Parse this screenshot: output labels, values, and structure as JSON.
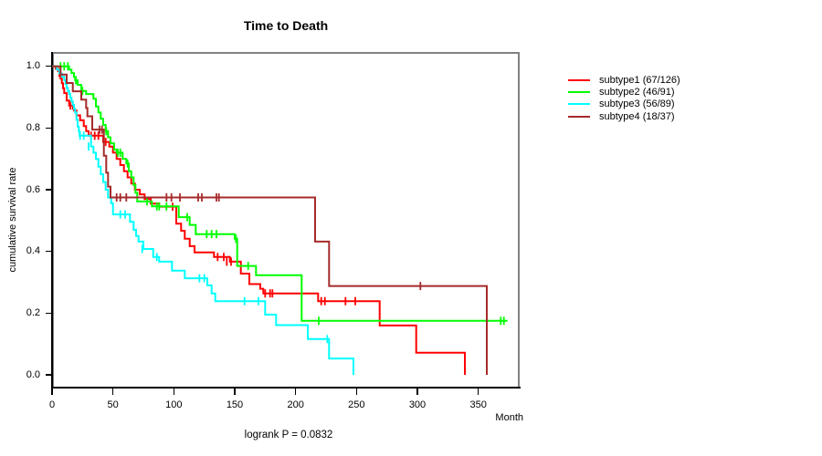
{
  "title": "Time to Death",
  "x_axis": {
    "label": "Month",
    "ticks": [
      0,
      50,
      100,
      150,
      200,
      250,
      300,
      350
    ]
  },
  "y_axis": {
    "label": "cumulative survival rate",
    "ticks": [
      1.0,
      0.8,
      0.6,
      0.4,
      0.2,
      0.0
    ]
  },
  "footnote": "logrank P = 0.0832",
  "chart_data": {
    "type": "line",
    "subtype": "kaplan-meier-step",
    "title": "Time to Death",
    "xlabel": "Month",
    "ylabel": "cumulative survival rate",
    "annotation": "logrank P = 0.0832",
    "xlim": [
      0,
      384
    ],
    "ylim": [
      -0.0443,
      1.0464
    ],
    "grid": false,
    "legend_position": "right-outside",
    "box_color": "#828282",
    "series": [
      {
        "id": "subtype1",
        "name": "subtype1 (67/126)",
        "events": 67,
        "n": 126,
        "color": "#ff0000",
        "steps": [
          [
            0,
            1.0
          ],
          [
            3,
            0.992
          ],
          [
            5,
            0.984
          ],
          [
            6,
            0.968
          ],
          [
            7,
            0.96
          ],
          [
            8,
            0.945
          ],
          [
            9,
            0.929
          ],
          [
            10,
            0.913
          ],
          [
            12,
            0.889
          ],
          [
            14,
            0.873
          ],
          [
            18,
            0.857
          ],
          [
            20,
            0.841
          ],
          [
            23,
            0.825
          ],
          [
            26,
            0.806
          ],
          [
            28,
            0.79
          ],
          [
            30,
            0.775
          ],
          [
            42,
            0.755
          ],
          [
            47,
            0.74
          ],
          [
            50,
            0.72
          ],
          [
            53,
            0.7
          ],
          [
            56,
            0.68
          ],
          [
            59,
            0.66
          ],
          [
            62,
            0.64
          ],
          [
            65,
            0.62
          ],
          [
            68,
            0.6
          ],
          [
            72,
            0.585
          ],
          [
            76,
            0.57
          ],
          [
            81,
            0.555
          ],
          [
            88,
            0.545
          ],
          [
            102,
            0.49
          ],
          [
            106,
            0.467
          ],
          [
            109,
            0.441
          ],
          [
            113,
            0.417
          ],
          [
            117,
            0.397
          ],
          [
            133,
            0.382
          ],
          [
            146,
            0.367
          ],
          [
            155,
            0.328
          ],
          [
            162,
            0.294
          ],
          [
            171,
            0.279
          ],
          [
            173.5,
            0.264
          ],
          [
            218.5,
            0.239
          ],
          [
            269,
            0.16
          ],
          [
            299,
            0.072
          ],
          [
            339,
            0
          ]
        ],
        "censors": [
          [
            15,
            0.873
          ],
          [
            17,
            0.873
          ],
          [
            32,
            0.775
          ],
          [
            35,
            0.775
          ],
          [
            38,
            0.775
          ],
          [
            44,
            0.755
          ],
          [
            99,
            0.545
          ],
          [
            136,
            0.382
          ],
          [
            141,
            0.382
          ],
          [
            143.5,
            0.367
          ],
          [
            147,
            0.367
          ],
          [
            175,
            0.264
          ],
          [
            179,
            0.264
          ],
          [
            181,
            0.264
          ],
          [
            221,
            0.239
          ],
          [
            224,
            0.239
          ],
          [
            241,
            0.239
          ],
          [
            249,
            0.239
          ]
        ]
      },
      {
        "id": "subtype2",
        "name": "subtype2 (46/91)",
        "events": 46,
        "n": 91,
        "color": "#00ff00",
        "steps": [
          [
            0,
            1.0
          ],
          [
            14,
            0.989
          ],
          [
            16,
            0.978
          ],
          [
            18,
            0.966
          ],
          [
            19,
            0.955
          ],
          [
            21,
            0.94
          ],
          [
            24,
            0.92
          ],
          [
            28,
            0.91
          ],
          [
            34,
            0.895
          ],
          [
            36,
            0.87
          ],
          [
            38,
            0.85
          ],
          [
            40,
            0.83
          ],
          [
            42,
            0.81
          ],
          [
            44,
            0.79
          ],
          [
            46,
            0.77
          ],
          [
            48,
            0.75
          ],
          [
            51,
            0.73
          ],
          [
            53,
            0.72
          ],
          [
            58,
            0.7
          ],
          [
            61,
            0.685
          ],
          [
            63,
            0.66
          ],
          [
            65,
            0.64
          ],
          [
            67,
            0.615
          ],
          [
            68.5,
            0.59
          ],
          [
            70,
            0.562
          ],
          [
            82,
            0.546
          ],
          [
            104,
            0.511
          ],
          [
            113,
            0.486
          ],
          [
            118,
            0.456
          ],
          [
            150,
            0.441
          ],
          [
            152,
            0.353
          ],
          [
            167.5,
            0.323
          ],
          [
            205,
            0.175
          ],
          [
            374,
            0.175
          ]
        ],
        "censors": [
          [
            7,
            1.0
          ],
          [
            10,
            1.0
          ],
          [
            13,
            1.0
          ],
          [
            19.5,
            0.955
          ],
          [
            25,
            0.92
          ],
          [
            44.5,
            0.79
          ],
          [
            54,
            0.72
          ],
          [
            56,
            0.72
          ],
          [
            62,
            0.685
          ],
          [
            78,
            0.562
          ],
          [
            86,
            0.546
          ],
          [
            88,
            0.546
          ],
          [
            94,
            0.546
          ],
          [
            111,
            0.511
          ],
          [
            127,
            0.456
          ],
          [
            131,
            0.456
          ],
          [
            135,
            0.456
          ],
          [
            151,
            0.441
          ],
          [
            161,
            0.353
          ],
          [
            219,
            0.175
          ],
          [
            368.5,
            0.175
          ],
          [
            371,
            0.175
          ]
        ]
      },
      {
        "id": "subtype3",
        "name": "subtype3 (56/89)",
        "events": 56,
        "n": 89,
        "color": "#00ffff",
        "steps": [
          [
            0,
            1.0
          ],
          [
            4,
            0.989
          ],
          [
            6,
            0.977
          ],
          [
            8,
            0.966
          ],
          [
            10,
            0.955
          ],
          [
            11,
            0.943
          ],
          [
            12,
            0.93
          ],
          [
            13,
            0.92
          ],
          [
            14,
            0.91
          ],
          [
            15,
            0.898
          ],
          [
            16,
            0.886
          ],
          [
            17,
            0.875
          ],
          [
            18,
            0.862
          ],
          [
            19,
            0.85
          ],
          [
            20,
            0.827
          ],
          [
            21,
            0.805
          ],
          [
            22,
            0.79
          ],
          [
            22.5,
            0.775
          ],
          [
            32,
            0.74
          ],
          [
            34,
            0.72
          ],
          [
            36,
            0.7
          ],
          [
            38,
            0.675
          ],
          [
            40,
            0.65
          ],
          [
            42,
            0.625
          ],
          [
            44,
            0.6
          ],
          [
            46,
            0.575
          ],
          [
            48.5,
            0.556
          ],
          [
            50,
            0.52
          ],
          [
            64,
            0.496
          ],
          [
            67,
            0.47
          ],
          [
            69,
            0.45
          ],
          [
            71,
            0.432
          ],
          [
            75,
            0.408
          ],
          [
            83,
            0.382
          ],
          [
            88,
            0.367
          ],
          [
            98.5,
            0.338
          ],
          [
            109,
            0.313
          ],
          [
            127.5,
            0.29
          ],
          [
            131,
            0.264
          ],
          [
            134,
            0.239
          ],
          [
            175,
            0.195
          ],
          [
            184,
            0.161
          ],
          [
            210,
            0.116
          ],
          [
            227.5,
            0.053
          ],
          [
            247.5,
            0
          ]
        ],
        "censors": [
          [
            23,
            0.775
          ],
          [
            26,
            0.775
          ],
          [
            30,
            0.74
          ],
          [
            56,
            0.52
          ],
          [
            60,
            0.52
          ],
          [
            74,
            0.408
          ],
          [
            86,
            0.382
          ],
          [
            121,
            0.313
          ],
          [
            125,
            0.313
          ],
          [
            158,
            0.239
          ],
          [
            169.5,
            0.239
          ],
          [
            226,
            0.116
          ]
        ]
      },
      {
        "id": "subtype4",
        "name": "subtype4 (18/37)",
        "events": 18,
        "n": 37,
        "color": "#a52a2a",
        "steps": [
          [
            0,
            1.0
          ],
          [
            7,
            0.973
          ],
          [
            12,
            0.946
          ],
          [
            17,
            0.919
          ],
          [
            24,
            0.892
          ],
          [
            28,
            0.865
          ],
          [
            29,
            0.838
          ],
          [
            33,
            0.795
          ],
          [
            42.5,
            0.71
          ],
          [
            44.5,
            0.655
          ],
          [
            46,
            0.61
          ],
          [
            48,
            0.575
          ],
          [
            216,
            0.432
          ],
          [
            227.5,
            0.288
          ],
          [
            357,
            0
          ]
        ],
        "censors": [
          [
            39,
            0.795
          ],
          [
            41,
            0.795
          ],
          [
            53,
            0.575
          ],
          [
            56,
            0.575
          ],
          [
            61,
            0.575
          ],
          [
            94,
            0.575
          ],
          [
            98,
            0.575
          ],
          [
            105,
            0.575
          ],
          [
            120,
            0.575
          ],
          [
            123,
            0.575
          ],
          [
            135,
            0.575
          ],
          [
            137,
            0.575
          ],
          [
            302.5,
            0.288
          ]
        ]
      }
    ]
  }
}
